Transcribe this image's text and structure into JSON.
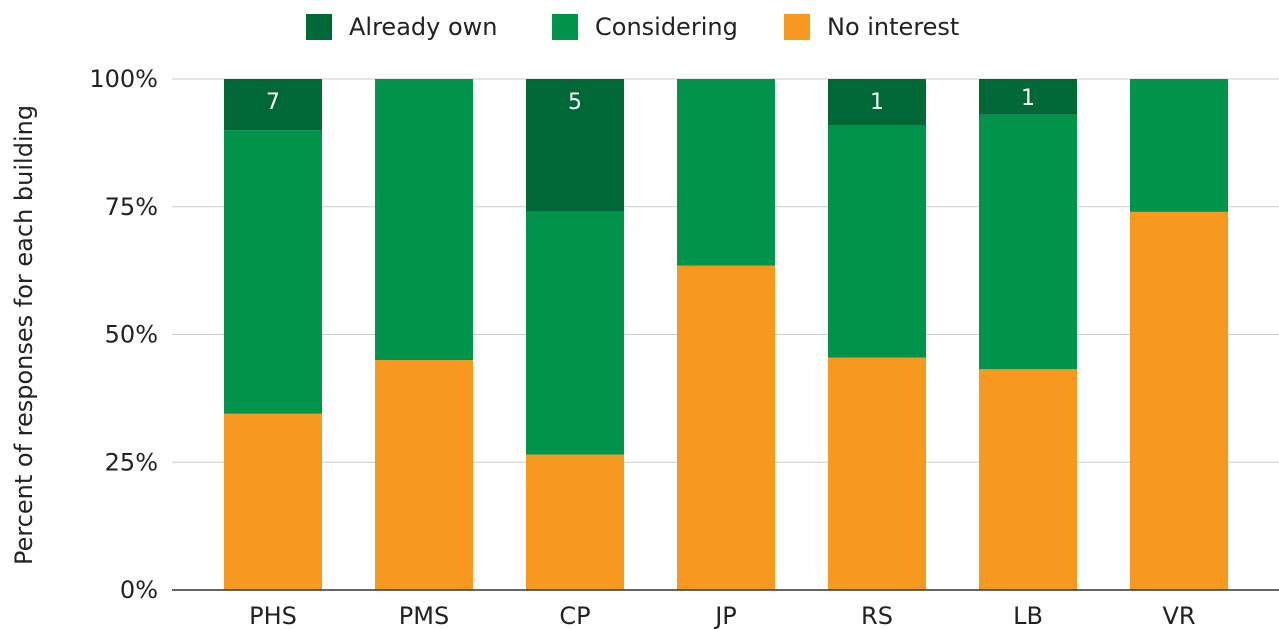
{
  "chart_data": {
    "type": "bar",
    "stacked": true,
    "normalized": true,
    "categories": [
      "PHS",
      "PMS",
      "CP",
      "JP",
      "RS",
      "LB",
      "VR"
    ],
    "series": [
      {
        "name": "No interest",
        "color": "#f7981f",
        "values": [
          34.5,
          45.0,
          26.5,
          63.5,
          45.5,
          43.2,
          74.0
        ]
      },
      {
        "name": "Considering",
        "color": "#00934a",
        "values": [
          55.5,
          55.0,
          47.5,
          36.5,
          45.5,
          49.8,
          26.0
        ]
      },
      {
        "name": "Already own",
        "color": "#006837",
        "values": [
          10.0,
          0,
          26.0,
          0,
          9.0,
          7.0,
          0
        ]
      }
    ],
    "legend_order": [
      "Already own",
      "Considering",
      "No interest"
    ],
    "legend_position": "top",
    "segment_labels": {
      "series": "Already own",
      "labels": [
        "7",
        "",
        "5",
        "",
        "1",
        "1",
        ""
      ]
    },
    "ylabel": "Percent of responses for each building",
    "xlabel": "",
    "ylim": [
      0,
      100
    ],
    "yticks": [
      0,
      25,
      50,
      75,
      100
    ],
    "ytick_labels": [
      "0%",
      "25%",
      "50%",
      "75%",
      "100%"
    ],
    "grid": true
  }
}
